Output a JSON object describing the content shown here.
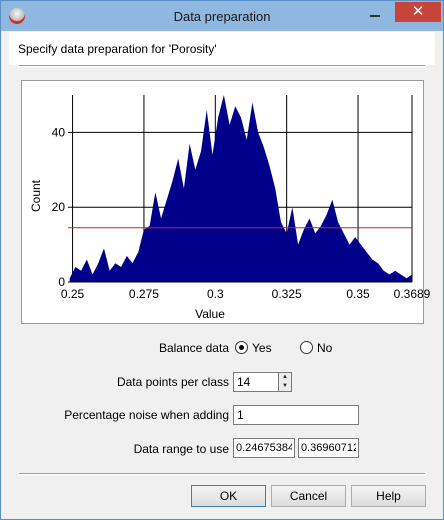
{
  "window": {
    "title": "Data preparation",
    "close_symbol": "✕"
  },
  "header": {
    "text": "Specify data preparation for 'Porosity'"
  },
  "chart_data": {
    "type": "area",
    "xlabel": "Value",
    "ylabel": "Count",
    "xlim": [
      0.2484,
      0.3689
    ],
    "ylim": [
      0,
      50
    ],
    "x_ticks": [
      0.25,
      0.275,
      0.3,
      0.325,
      0.35,
      0.3689
    ],
    "x_tick_labels": [
      "0.25",
      "0.275",
      "0.3",
      "0.325",
      "0.35",
      "0.3689"
    ],
    "y_ticks": [
      0,
      20,
      40
    ],
    "y_tick_labels": [
      "0",
      "20",
      "40"
    ],
    "grid": true,
    "fill_color": "#00008b",
    "reference_line": {
      "y": 14.5,
      "color": "#cc2222"
    },
    "series": [
      {
        "x": [
          0.249,
          0.251,
          0.253,
          0.255,
          0.257,
          0.259,
          0.261,
          0.263,
          0.265,
          0.267,
          0.269,
          0.271,
          0.273,
          0.275,
          0.277,
          0.279,
          0.281,
          0.283,
          0.285,
          0.287,
          0.289,
          0.291,
          0.293,
          0.295,
          0.297,
          0.299,
          0.301,
          0.303,
          0.305,
          0.307,
          0.309,
          0.311,
          0.313,
          0.315,
          0.317,
          0.319,
          0.321,
          0.323,
          0.325,
          0.327,
          0.329,
          0.331,
          0.333,
          0.335,
          0.337,
          0.339,
          0.341,
          0.343,
          0.345,
          0.347,
          0.349,
          0.351,
          0.353,
          0.355,
          0.357,
          0.359,
          0.361,
          0.363,
          0.365,
          0.367,
          0.3689
        ],
        "values": [
          1,
          4,
          3,
          6,
          2,
          5,
          9,
          3,
          5,
          4,
          7,
          5,
          8,
          14,
          15,
          24,
          17,
          22,
          27,
          33,
          25,
          37,
          30,
          35,
          46,
          34,
          44,
          50,
          42,
          47,
          44,
          38,
          48,
          40,
          36,
          31,
          25,
          16,
          13,
          20,
          10,
          14,
          17,
          13,
          15,
          18,
          22,
          16,
          13,
          10,
          12,
          10,
          8,
          6,
          5,
          3,
          2,
          3,
          2,
          1,
          2
        ]
      }
    ]
  },
  "form": {
    "balance": {
      "label": "Balance data",
      "yes": "Yes",
      "no": "No",
      "selected": "Yes"
    },
    "points_per_class": {
      "label": "Data points per class",
      "value": "14"
    },
    "noise": {
      "label": "Percentage noise when adding",
      "value": "1"
    },
    "range": {
      "label": "Data range to use",
      "min": "0.24675384",
      "max": "0.36960712"
    }
  },
  "buttons": {
    "ok": "OK",
    "cancel": "Cancel",
    "help": "Help"
  }
}
